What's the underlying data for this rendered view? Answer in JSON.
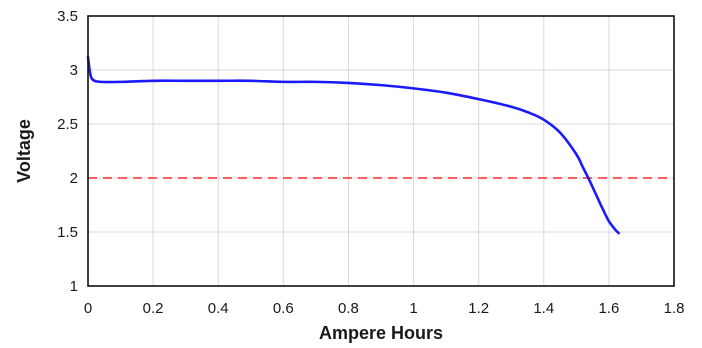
{
  "chart_data": {
    "type": "line",
    "xlabel": "Ampere Hours",
    "ylabel": "Voltage",
    "xlim": [
      0,
      1.8
    ],
    "ylim": [
      1,
      3.5
    ],
    "xticks": [
      "0",
      "0.2",
      "0.4",
      "0.6",
      "0.8",
      "1",
      "1.2",
      "1.4",
      "1.6",
      "1.8"
    ],
    "yticks": [
      "1",
      "1.5",
      "2",
      "2.5",
      "3",
      "3.5"
    ],
    "grid": true,
    "series": [
      {
        "color": "#1a1aff",
        "x": [
          0,
          0.005,
          0.01,
          0.02,
          0.04,
          0.1,
          0.2,
          0.3,
          0.4,
          0.5,
          0.6,
          0.7,
          0.8,
          0.9,
          1.0,
          1.1,
          1.2,
          1.3,
          1.35,
          1.4,
          1.45,
          1.5,
          1.52,
          1.54,
          1.56,
          1.58,
          1.6,
          1.62,
          1.63
        ],
        "y": [
          3.12,
          3.0,
          2.93,
          2.9,
          2.89,
          2.89,
          2.9,
          2.9,
          2.9,
          2.9,
          2.89,
          2.89,
          2.88,
          2.86,
          2.83,
          2.79,
          2.73,
          2.66,
          2.61,
          2.54,
          2.42,
          2.22,
          2.1,
          1.98,
          1.85,
          1.72,
          1.6,
          1.52,
          1.49
        ]
      }
    ],
    "reference_lines": [
      {
        "axis": "y",
        "value": 2,
        "color": "#ff2a2a",
        "style": "dashed"
      }
    ]
  }
}
